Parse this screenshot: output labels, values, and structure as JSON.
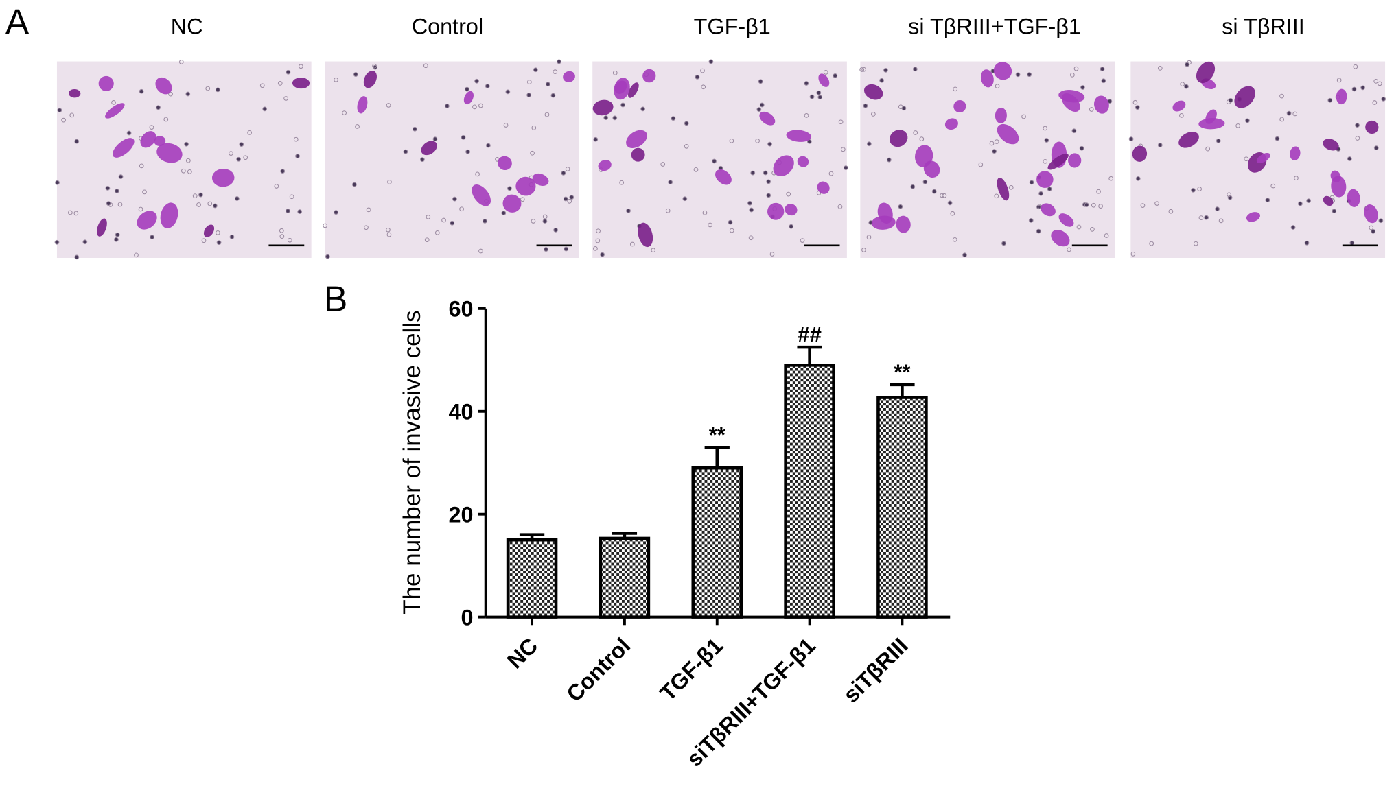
{
  "panel_a": {
    "label": "A",
    "titles": [
      "NC",
      "Control",
      "TGF-β1",
      "si TβRIII+TGF-β1",
      "si TβRIII"
    ]
  },
  "chart_data": {
    "type": "bar",
    "panel_label": "B",
    "y_label": "The number of invasive cells",
    "categories": [
      "NC",
      "Control",
      "TGF-β1",
      "siTβRIII+TGF-β1",
      "siTβRIII"
    ],
    "values": [
      15,
      15.3,
      29,
      49,
      42.7
    ],
    "errors": [
      1,
      1,
      4,
      3.5,
      2.5
    ],
    "annotations": [
      null,
      null,
      "**",
      "##",
      "**"
    ],
    "ylim": [
      0,
      60
    ],
    "yticks": [
      0,
      20,
      40,
      60
    ],
    "color": "#000000"
  }
}
